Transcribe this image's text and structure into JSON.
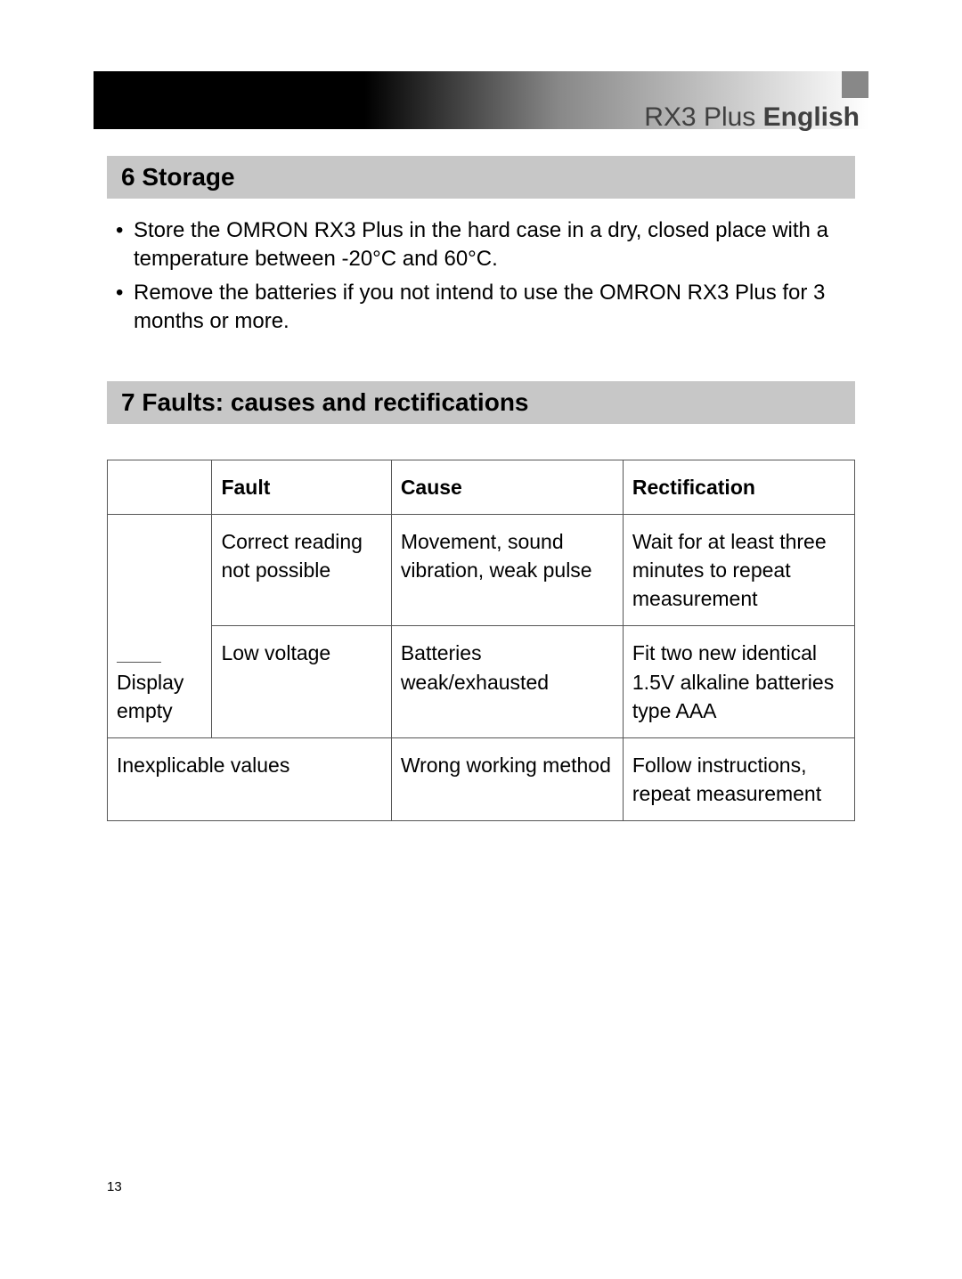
{
  "header": {
    "product": "RX3 Plus",
    "language": "English"
  },
  "sections": {
    "storage": {
      "heading": "6 Storage",
      "bullets": [
        "Store the OMRON RX3 Plus in the hard case in a dry, closed place with a temperature between -20°C and 60°C.",
        "Remove the batteries if you not intend to use the OMRON RX3 Plus for 3 months or more."
      ]
    },
    "faults": {
      "heading": "7 Faults: causes and rectifications",
      "table": {
        "columns": [
          "",
          "Fault",
          "Cause",
          "Rectification"
        ],
        "rows": [
          {
            "c1": "",
            "c2": "Correct reading not possible",
            "c3": "Movement, sound vibration, weak pulse",
            "c4": "Wait for at least three minutes to repeat measurement"
          },
          {
            "c1": "Display empty",
            "c2": "Low voltage",
            "c3": "Batteries weak/exhausted",
            "c4": "Fit two new identical 1.5V alkaline batteries type AAA"
          },
          {
            "c1_merged": "Inexplicable values",
            "c3": "Wrong working method",
            "c4": "Follow instructions, repeat measurement"
          }
        ]
      }
    }
  },
  "page_number": "13",
  "colors": {
    "heading_bg": "#c7c7c7",
    "text": "#000000",
    "border": "#555555",
    "title_grey": "#404040"
  }
}
